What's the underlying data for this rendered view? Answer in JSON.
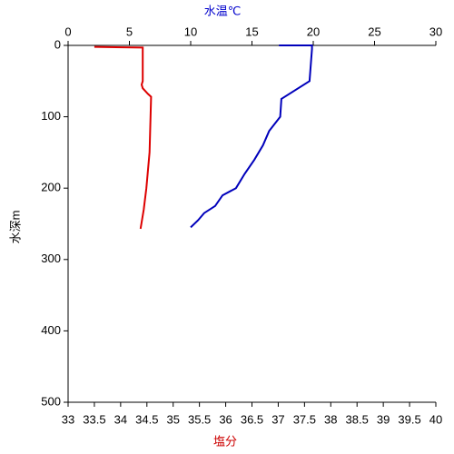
{
  "chart_data": {
    "type": "profile",
    "x_label": "塩分",
    "x2_label": "水温℃",
    "y_label": "水深m",
    "xlim": [
      33,
      40
    ],
    "xticks": [
      33,
      33.5,
      34,
      34.5,
      35,
      35.5,
      36,
      36.5,
      37,
      37.5,
      38,
      38.5,
      39,
      39.5,
      40
    ],
    "x2lim": [
      0,
      30
    ],
    "x2ticks": [
      0,
      5,
      10,
      15,
      20,
      25,
      30
    ],
    "ylim": [
      0,
      500
    ],
    "yticks": [
      0,
      100,
      200,
      300,
      400,
      500
    ],
    "y_inverted": true,
    "x_label_color": "#cc0000",
    "x2_label_color": "#0000cc",
    "series": [
      {
        "color": "#dd0000",
        "axis": "x",
        "depth": [
          2,
          3,
          50,
          55,
          60,
          68,
          72,
          100,
          150,
          200,
          230,
          257
        ],
        "values": [
          33.5,
          34.42,
          34.42,
          34.4,
          34.42,
          34.52,
          34.58,
          34.57,
          34.55,
          34.49,
          34.44,
          34.38
        ]
      },
      {
        "color": "#0000bb",
        "axis": "x2",
        "depth": [
          0,
          0,
          5,
          50,
          75,
          100,
          120,
          140,
          160,
          180,
          200,
          210,
          225,
          235,
          245,
          255
        ],
        "values": [
          17.2,
          19.9,
          19.9,
          19.7,
          17.4,
          17.3,
          16.4,
          15.9,
          15.2,
          14.4,
          13.7,
          12.6,
          12,
          11.1,
          10.6,
          10
        ]
      }
    ]
  }
}
